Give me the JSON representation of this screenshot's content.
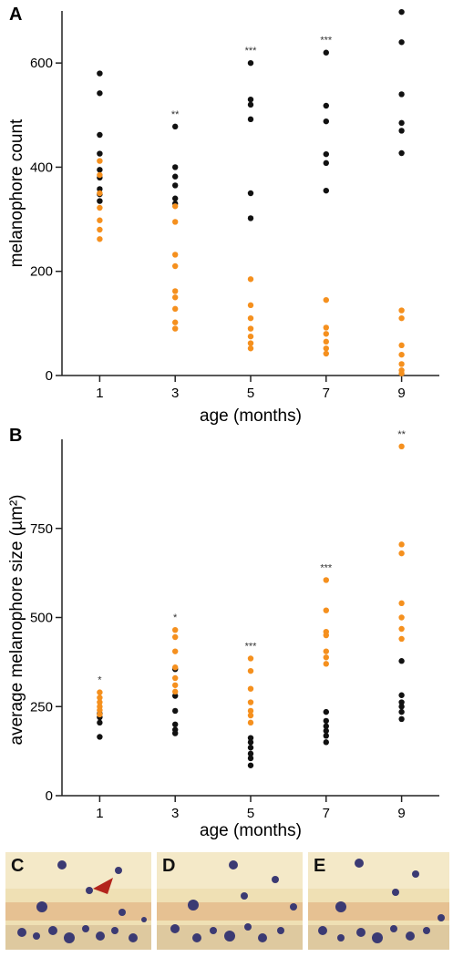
{
  "colors": {
    "black_series": "#111111",
    "orange_series": "#f5901e",
    "axis": "#222222"
  },
  "chart_data": [
    {
      "panel": "A",
      "type": "scatter",
      "xlabel": "age (months)",
      "ylabel": "melanophore count",
      "x_ticks": [
        1,
        3,
        5,
        7,
        9
      ],
      "y_ticks": [
        0,
        200,
        400,
        600
      ],
      "ylim": [
        0,
        700
      ],
      "xlim": [
        0,
        10
      ],
      "significance": [
        {
          "x": 3,
          "label": "**"
        },
        {
          "x": 5,
          "label": "***"
        },
        {
          "x": 7,
          "label": "***"
        },
        {
          "x": 9,
          "label": "***"
        }
      ],
      "series": [
        {
          "color": "black",
          "points": [
            {
              "x": 1,
              "y": 580
            },
            {
              "x": 1,
              "y": 542
            },
            {
              "x": 1,
              "y": 462
            },
            {
              "x": 1,
              "y": 426
            },
            {
              "x": 1,
              "y": 395
            },
            {
              "x": 1,
              "y": 380
            },
            {
              "x": 1,
              "y": 358
            },
            {
              "x": 1,
              "y": 348
            },
            {
              "x": 1,
              "y": 335
            },
            {
              "x": 3,
              "y": 478
            },
            {
              "x": 3,
              "y": 400
            },
            {
              "x": 3,
              "y": 382
            },
            {
              "x": 3,
              "y": 365
            },
            {
              "x": 3,
              "y": 340
            },
            {
              "x": 3,
              "y": 330
            },
            {
              "x": 5,
              "y": 600
            },
            {
              "x": 5,
              "y": 530
            },
            {
              "x": 5,
              "y": 520
            },
            {
              "x": 5,
              "y": 492
            },
            {
              "x": 5,
              "y": 350
            },
            {
              "x": 5,
              "y": 302
            },
            {
              "x": 7,
              "y": 620
            },
            {
              "x": 7,
              "y": 518
            },
            {
              "x": 7,
              "y": 488
            },
            {
              "x": 7,
              "y": 425
            },
            {
              "x": 7,
              "y": 408
            },
            {
              "x": 7,
              "y": 355
            },
            {
              "x": 9,
              "y": 698
            },
            {
              "x": 9,
              "y": 640
            },
            {
              "x": 9,
              "y": 540
            },
            {
              "x": 9,
              "y": 485
            },
            {
              "x": 9,
              "y": 470
            },
            {
              "x": 9,
              "y": 427
            }
          ]
        },
        {
          "color": "orange",
          "points": [
            {
              "x": 1,
              "y": 412
            },
            {
              "x": 1,
              "y": 385
            },
            {
              "x": 1,
              "y": 350
            },
            {
              "x": 1,
              "y": 322
            },
            {
              "x": 1,
              "y": 298
            },
            {
              "x": 1,
              "y": 280
            },
            {
              "x": 1,
              "y": 262
            },
            {
              "x": 3,
              "y": 325
            },
            {
              "x": 3,
              "y": 295
            },
            {
              "x": 3,
              "y": 232
            },
            {
              "x": 3,
              "y": 210
            },
            {
              "x": 3,
              "y": 162
            },
            {
              "x": 3,
              "y": 150
            },
            {
              "x": 3,
              "y": 128
            },
            {
              "x": 3,
              "y": 102
            },
            {
              "x": 3,
              "y": 90
            },
            {
              "x": 5,
              "y": 185
            },
            {
              "x": 5,
              "y": 135
            },
            {
              "x": 5,
              "y": 110
            },
            {
              "x": 5,
              "y": 90
            },
            {
              "x": 5,
              "y": 75
            },
            {
              "x": 5,
              "y": 62
            },
            {
              "x": 5,
              "y": 52
            },
            {
              "x": 7,
              "y": 145
            },
            {
              "x": 7,
              "y": 92
            },
            {
              "x": 7,
              "y": 80
            },
            {
              "x": 7,
              "y": 65
            },
            {
              "x": 7,
              "y": 52
            },
            {
              "x": 7,
              "y": 42
            },
            {
              "x": 9,
              "y": 125
            },
            {
              "x": 9,
              "y": 110
            },
            {
              "x": 9,
              "y": 58
            },
            {
              "x": 9,
              "y": 40
            },
            {
              "x": 9,
              "y": 22
            },
            {
              "x": 9,
              "y": 10
            },
            {
              "x": 9,
              "y": 4
            }
          ]
        }
      ]
    },
    {
      "panel": "B",
      "type": "scatter",
      "xlabel": "age (months)",
      "ylabel": "average melanophore size (µm²)",
      "x_ticks": [
        1,
        3,
        5,
        7,
        9
      ],
      "y_ticks": [
        0,
        250,
        500,
        750
      ],
      "ylim": [
        0,
        1000
      ],
      "xlim": [
        0,
        10
      ],
      "significance": [
        {
          "x": 1,
          "label": "*"
        },
        {
          "x": 3,
          "label": "*"
        },
        {
          "x": 5,
          "label": "***"
        },
        {
          "x": 7,
          "label": "***"
        },
        {
          "x": 9,
          "label": "**"
        }
      ],
      "series": [
        {
          "color": "black",
          "points": [
            {
              "x": 1,
              "y": 230
            },
            {
              "x": 1,
              "y": 220
            },
            {
              "x": 1,
              "y": 205
            },
            {
              "x": 1,
              "y": 165
            },
            {
              "x": 3,
              "y": 355
            },
            {
              "x": 3,
              "y": 280
            },
            {
              "x": 3,
              "y": 238
            },
            {
              "x": 3,
              "y": 200
            },
            {
              "x": 3,
              "y": 185
            },
            {
              "x": 3,
              "y": 175
            },
            {
              "x": 5,
              "y": 162
            },
            {
              "x": 5,
              "y": 150
            },
            {
              "x": 5,
              "y": 135
            },
            {
              "x": 5,
              "y": 118
            },
            {
              "x": 5,
              "y": 105
            },
            {
              "x": 5,
              "y": 85
            },
            {
              "x": 7,
              "y": 235
            },
            {
              "x": 7,
              "y": 210
            },
            {
              "x": 7,
              "y": 195
            },
            {
              "x": 7,
              "y": 182
            },
            {
              "x": 7,
              "y": 168
            },
            {
              "x": 7,
              "y": 150
            },
            {
              "x": 9,
              "y": 378
            },
            {
              "x": 9,
              "y": 282
            },
            {
              "x": 9,
              "y": 262
            },
            {
              "x": 9,
              "y": 250
            },
            {
              "x": 9,
              "y": 235
            },
            {
              "x": 9,
              "y": 215
            }
          ]
        },
        {
          "color": "orange",
          "points": [
            {
              "x": 1,
              "y": 290
            },
            {
              "x": 1,
              "y": 275
            },
            {
              "x": 1,
              "y": 262
            },
            {
              "x": 1,
              "y": 250
            },
            {
              "x": 1,
              "y": 240
            },
            {
              "x": 1,
              "y": 228
            },
            {
              "x": 3,
              "y": 465
            },
            {
              "x": 3,
              "y": 445
            },
            {
              "x": 3,
              "y": 405
            },
            {
              "x": 3,
              "y": 360
            },
            {
              "x": 3,
              "y": 330
            },
            {
              "x": 3,
              "y": 310
            },
            {
              "x": 3,
              "y": 292
            },
            {
              "x": 5,
              "y": 385
            },
            {
              "x": 5,
              "y": 350
            },
            {
              "x": 5,
              "y": 300
            },
            {
              "x": 5,
              "y": 262
            },
            {
              "x": 5,
              "y": 238
            },
            {
              "x": 5,
              "y": 225
            },
            {
              "x": 5,
              "y": 205
            },
            {
              "x": 7,
              "y": 605
            },
            {
              "x": 7,
              "y": 520
            },
            {
              "x": 7,
              "y": 460
            },
            {
              "x": 7,
              "y": 450
            },
            {
              "x": 7,
              "y": 405
            },
            {
              "x": 7,
              "y": 388
            },
            {
              "x": 7,
              "y": 370
            },
            {
              "x": 9,
              "y": 980
            },
            {
              "x": 9,
              "y": 705
            },
            {
              "x": 9,
              "y": 680
            },
            {
              "x": 9,
              "y": 540
            },
            {
              "x": 9,
              "y": 500
            },
            {
              "x": 9,
              "y": 468
            },
            {
              "x": 9,
              "y": 440
            }
          ]
        }
      ]
    }
  ],
  "photo_panels": [
    {
      "letter": "C",
      "arrowhead": true
    },
    {
      "letter": "D",
      "arrowhead": false
    },
    {
      "letter": "E",
      "arrowhead": false
    }
  ]
}
